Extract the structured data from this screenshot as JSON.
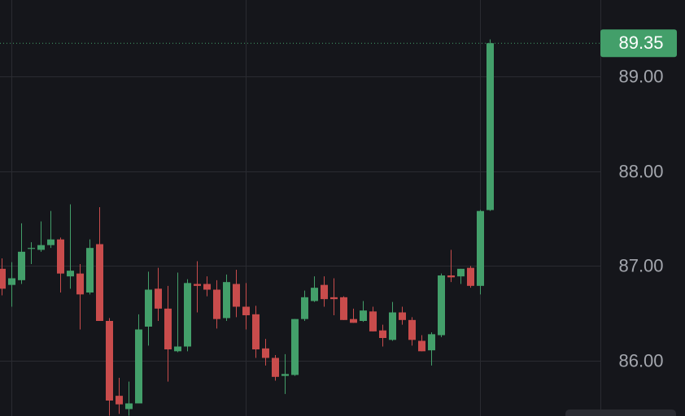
{
  "chart_data": {
    "type": "candlestick",
    "up_color": "#439f6a",
    "down_color": "#c94c4c",
    "grid": true,
    "ylim": [
      85.417,
      89.806
    ],
    "yticks": [
      {
        "value": 86,
        "label": "86.00"
      },
      {
        "value": 87,
        "label": "87.00"
      },
      {
        "value": 88,
        "label": "88.00"
      },
      {
        "value": 89,
        "label": "89.00"
      }
    ],
    "last_price": 89.35,
    "open": [
      86.97,
      86.8,
      86.85,
      87.18,
      87.17,
      87.22,
      87.28,
      86.89,
      86.92,
      86.72,
      87.23,
      86.42,
      85.63,
      85.49,
      85.55,
      86.36,
      86.76,
      86.55,
      86.1,
      86.15,
      86.81,
      86.81,
      86.75,
      86.45,
      86.81,
      86.57,
      86.49,
      86.13,
      86.03,
      85.84,
      85.85,
      86.44,
      86.63,
      86.8,
      86.67,
      86.67,
      86.44,
      86.42,
      86.52,
      86.32,
      86.22,
      86.51,
      86.43,
      86.21,
      86.11,
      86.27,
      86.9,
      86.89,
      86.98,
      86.79,
      87.59
    ],
    "high": [
      87.08,
      87.04,
      87.45,
      87.25,
      87.47,
      87.58,
      87.3,
      87.65,
      87.02,
      87.28,
      87.62,
      86.45,
      85.82,
      85.78,
      86.49,
      86.94,
      86.98,
      86.79,
      86.93,
      86.86,
      87.05,
      86.89,
      86.85,
      86.91,
      86.96,
      86.82,
      86.58,
      86.23,
      86.06,
      86.07,
      86.44,
      86.74,
      86.89,
      86.89,
      86.87,
      86.68,
      86.55,
      86.63,
      86.57,
      86.38,
      86.62,
      86.57,
      86.46,
      86.27,
      86.3,
      86.92,
      87.17,
      86.97,
      87.0,
      87.59,
      89.39
    ],
    "low": [
      86.69,
      86.57,
      86.81,
      87.02,
      87.15,
      87.19,
      86.72,
      86.76,
      86.33,
      86.7,
      86.42,
      85.42,
      85.44,
      85.42,
      85.55,
      86.16,
      86.42,
      85.78,
      86.09,
      86.1,
      86.51,
      86.68,
      86.34,
      86.42,
      86.46,
      86.33,
      86.03,
      85.95,
      85.79,
      85.65,
      85.84,
      86.42,
      86.62,
      86.57,
      86.48,
      86.43,
      86.4,
      86.41,
      86.31,
      86.15,
      86.21,
      86.38,
      86.16,
      86.1,
      85.95,
      86.25,
      86.83,
      86.81,
      86.77,
      86.7,
      87.58
    ],
    "close": [
      86.76,
      86.87,
      87.15,
      87.19,
      87.22,
      87.28,
      86.92,
      86.95,
      86.7,
      87.19,
      86.42,
      85.58,
      85.54,
      85.55,
      86.33,
      86.75,
      86.55,
      86.12,
      86.15,
      86.82,
      86.79,
      86.75,
      86.44,
      86.83,
      86.57,
      86.48,
      86.12,
      86.03,
      85.83,
      85.86,
      86.44,
      86.67,
      86.77,
      86.65,
      86.65,
      86.43,
      86.4,
      86.53,
      86.31,
      86.24,
      86.51,
      86.43,
      86.22,
      86.1,
      86.28,
      86.9,
      86.88,
      86.97,
      86.79,
      87.58,
      89.35
    ]
  }
}
